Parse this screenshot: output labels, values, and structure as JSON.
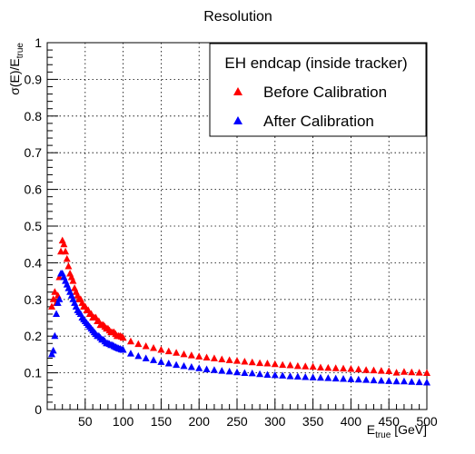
{
  "chart_data": {
    "type": "scatter",
    "title": "Resolution",
    "xlabel": {
      "main": "E",
      "sub": "true",
      "unit": " [GeV]"
    },
    "ylabel": {
      "main": "σ(E)/E",
      "sub": "true"
    },
    "xlim": [
      0,
      500
    ],
    "ylim": [
      0,
      1
    ],
    "grid": true,
    "x_ticks": [
      50,
      100,
      150,
      200,
      250,
      300,
      350,
      400,
      450,
      500
    ],
    "y_ticks": [
      0,
      0.1,
      0.2,
      0.3,
      0.4,
      0.5,
      0.6,
      0.7,
      0.8,
      0.9,
      1
    ],
    "legend": {
      "position": "top-right",
      "header": "EH endcap (inside tracker)"
    },
    "series": [
      {
        "name": "Before Calibration",
        "color": "#ff0000",
        "marker": "triangle-up",
        "points": [
          [
            6,
            0.28
          ],
          [
            8,
            0.3
          ],
          [
            10,
            0.32
          ],
          [
            12,
            0.29
          ],
          [
            14,
            0.31
          ],
          [
            16,
            0.36
          ],
          [
            18,
            0.43
          ],
          [
            20,
            0.46
          ],
          [
            22,
            0.45
          ],
          [
            24,
            0.43
          ],
          [
            26,
            0.41
          ],
          [
            28,
            0.39
          ],
          [
            30,
            0.37
          ],
          [
            32,
            0.36
          ],
          [
            34,
            0.35
          ],
          [
            36,
            0.33
          ],
          [
            38,
            0.32
          ],
          [
            40,
            0.31
          ],
          [
            42,
            0.3
          ],
          [
            44,
            0.3
          ],
          [
            46,
            0.29
          ],
          [
            48,
            0.28
          ],
          [
            50,
            0.28
          ],
          [
            52,
            0.27
          ],
          [
            54,
            0.27
          ],
          [
            56,
            0.26
          ],
          [
            58,
            0.26
          ],
          [
            60,
            0.25
          ],
          [
            62,
            0.25
          ],
          [
            64,
            0.25
          ],
          [
            66,
            0.24
          ],
          [
            68,
            0.24
          ],
          [
            70,
            0.23
          ],
          [
            72,
            0.23
          ],
          [
            74,
            0.23
          ],
          [
            76,
            0.225
          ],
          [
            78,
            0.22
          ],
          [
            80,
            0.22
          ],
          [
            82,
            0.215
          ],
          [
            84,
            0.21
          ],
          [
            86,
            0.21
          ],
          [
            88,
            0.21
          ],
          [
            90,
            0.205
          ],
          [
            92,
            0.2
          ],
          [
            94,
            0.2
          ],
          [
            96,
            0.2
          ],
          [
            98,
            0.198
          ],
          [
            100,
            0.195
          ],
          [
            110,
            0.185
          ],
          [
            120,
            0.178
          ],
          [
            130,
            0.172
          ],
          [
            140,
            0.167
          ],
          [
            150,
            0.162
          ],
          [
            160,
            0.158
          ],
          [
            170,
            0.154
          ],
          [
            180,
            0.15
          ],
          [
            190,
            0.147
          ],
          [
            200,
            0.144
          ],
          [
            210,
            0.141
          ],
          [
            220,
            0.139
          ],
          [
            230,
            0.136
          ],
          [
            240,
            0.134
          ],
          [
            250,
            0.132
          ],
          [
            260,
            0.13
          ],
          [
            270,
            0.128
          ],
          [
            280,
            0.126
          ],
          [
            290,
            0.125
          ],
          [
            300,
            0.123
          ],
          [
            310,
            0.121
          ],
          [
            320,
            0.12
          ],
          [
            330,
            0.118
          ],
          [
            340,
            0.117
          ],
          [
            350,
            0.116
          ],
          [
            360,
            0.114
          ],
          [
            370,
            0.113
          ],
          [
            380,
            0.112
          ],
          [
            390,
            0.111
          ],
          [
            400,
            0.11
          ],
          [
            410,
            0.109
          ],
          [
            420,
            0.107
          ],
          [
            430,
            0.106
          ],
          [
            440,
            0.105
          ],
          [
            450,
            0.104
          ],
          [
            460,
            0.1
          ],
          [
            470,
            0.102
          ],
          [
            480,
            0.101
          ],
          [
            490,
            0.1
          ],
          [
            500,
            0.099
          ]
        ]
      },
      {
        "name": "After Calibration",
        "color": "#0000ff",
        "marker": "triangle-up",
        "points": [
          [
            6,
            0.15
          ],
          [
            8,
            0.16
          ],
          [
            10,
            0.2
          ],
          [
            12,
            0.26
          ],
          [
            14,
            0.29
          ],
          [
            16,
            0.3
          ],
          [
            18,
            0.37
          ],
          [
            20,
            0.37
          ],
          [
            22,
            0.36
          ],
          [
            24,
            0.35
          ],
          [
            26,
            0.34
          ],
          [
            28,
            0.33
          ],
          [
            30,
            0.32
          ],
          [
            32,
            0.31
          ],
          [
            34,
            0.3
          ],
          [
            36,
            0.29
          ],
          [
            38,
            0.28
          ],
          [
            40,
            0.27
          ],
          [
            42,
            0.265
          ],
          [
            44,
            0.26
          ],
          [
            46,
            0.25
          ],
          [
            48,
            0.245
          ],
          [
            50,
            0.24
          ],
          [
            52,
            0.235
          ],
          [
            54,
            0.23
          ],
          [
            56,
            0.225
          ],
          [
            58,
            0.22
          ],
          [
            60,
            0.215
          ],
          [
            62,
            0.21
          ],
          [
            64,
            0.205
          ],
          [
            66,
            0.2
          ],
          [
            68,
            0.2
          ],
          [
            70,
            0.195
          ],
          [
            72,
            0.19
          ],
          [
            74,
            0.19
          ],
          [
            76,
            0.185
          ],
          [
            78,
            0.18
          ],
          [
            80,
            0.18
          ],
          [
            82,
            0.178
          ],
          [
            84,
            0.175
          ],
          [
            86,
            0.175
          ],
          [
            88,
            0.172
          ],
          [
            90,
            0.17
          ],
          [
            92,
            0.168
          ],
          [
            94,
            0.166
          ],
          [
            96,
            0.165
          ],
          [
            98,
            0.163
          ],
          [
            100,
            0.162
          ],
          [
            110,
            0.152
          ],
          [
            120,
            0.145
          ],
          [
            130,
            0.139
          ],
          [
            140,
            0.134
          ],
          [
            150,
            0.129
          ],
          [
            160,
            0.125
          ],
          [
            170,
            0.121
          ],
          [
            180,
            0.118
          ],
          [
            190,
            0.115
          ],
          [
            200,
            0.112
          ],
          [
            210,
            0.109
          ],
          [
            220,
            0.107
          ],
          [
            230,
            0.105
          ],
          [
            240,
            0.103
          ],
          [
            250,
            0.101
          ],
          [
            260,
            0.099
          ],
          [
            270,
            0.098
          ],
          [
            280,
            0.096
          ],
          [
            290,
            0.094
          ],
          [
            300,
            0.093
          ],
          [
            310,
            0.092
          ],
          [
            320,
            0.09
          ],
          [
            330,
            0.089
          ],
          [
            340,
            0.088
          ],
          [
            350,
            0.087
          ],
          [
            360,
            0.086
          ],
          [
            370,
            0.085
          ],
          [
            380,
            0.084
          ],
          [
            390,
            0.083
          ],
          [
            400,
            0.082
          ],
          [
            410,
            0.081
          ],
          [
            420,
            0.08
          ],
          [
            430,
            0.079
          ],
          [
            440,
            0.078
          ],
          [
            450,
            0.077
          ],
          [
            460,
            0.076
          ],
          [
            470,
            0.076
          ],
          [
            480,
            0.075
          ],
          [
            490,
            0.074
          ],
          [
            500,
            0.073
          ]
        ]
      }
    ]
  }
}
